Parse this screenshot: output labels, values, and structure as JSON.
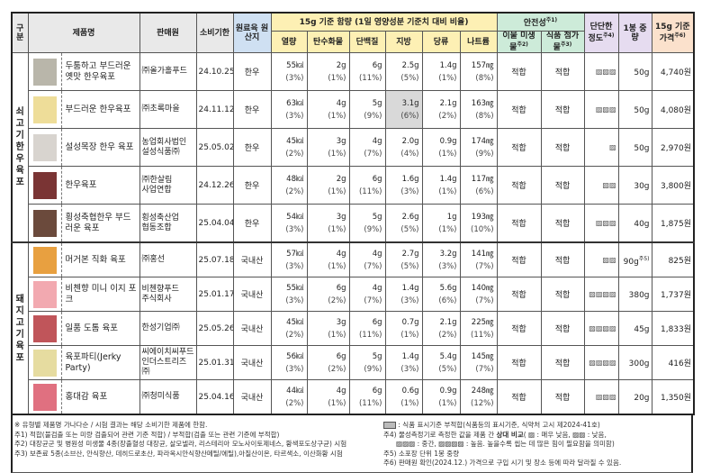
{
  "headers": {
    "category": "구분",
    "product": "제품명",
    "seller": "판매원",
    "expiry": "소비기한",
    "origin": "원료육 원산지",
    "nutrition_group": "15g 기준 함량 (1일 영양성분 기준치 대비 비율)",
    "calories": "열량",
    "carbs": "탄수화물",
    "protein": "단백질",
    "fat": "지방",
    "sugar": "당류",
    "sodium": "나트륨",
    "safety_group": "안전성",
    "safety_sup": "주1)",
    "foreign": "이물 미생물",
    "foreign_sup": "주2)",
    "additive": "식품 첨가물",
    "additive_sup": "주3)",
    "hardness": "단단한 정도",
    "hardness_sup": "주4)",
    "weight": "1봉 중량",
    "price": "15g 기준 가격",
    "price_sup": "주6)"
  },
  "categories": {
    "beef": "쇠 고 기  한 우  육 포",
    "pork": "돼 지 고 기  육 포"
  },
  "colors": {
    "header_gray": "#e9e9e9",
    "origin_blue": "#cfe0f2",
    "nutrition_yellow": "#fdf0b4",
    "safety_green": "#cdebd9",
    "hardness_purple": "#e6dcf0",
    "price_orange": "#fbe1cc",
    "nonconforming_gray": "#d9d9d9"
  },
  "rows": [
    {
      "group": "beef",
      "name": "두툼하고 부드러운 옛맛 한우육포",
      "seller": "㈜올가홀푸드",
      "expiry": "24.10.25.",
      "origin": "한우",
      "cal": "55㎉",
      "cal_p": "(3%)",
      "carb": "2g",
      "carb_p": "(1%)",
      "prot": "6g",
      "prot_p": "(11%)",
      "fat": "2.5g",
      "fat_p": "(5%)",
      "sugar": "1.4g",
      "sugar_p": "(1%)",
      "na": "157㎎",
      "na_p": "(8%)",
      "foreign": "적합",
      "additive": "적합",
      "hardness": "▨▨▨",
      "hardness_level": 3,
      "weight": "50g",
      "weight_sup": "",
      "price": "4,740원",
      "fat_nonconforming": false,
      "thumb": "#b9b6aa"
    },
    {
      "group": "beef",
      "name": "부드러운 한우육포",
      "seller": "㈜초록마을",
      "expiry": "24.11.12.",
      "origin": "한우",
      "cal": "63㎉",
      "cal_p": "(3%)",
      "carb": "4g",
      "carb_p": "(1%)",
      "prot": "5g",
      "prot_p": "(9%)",
      "fat": "3.1g",
      "fat_p": "(6%)",
      "sugar": "2.1g",
      "sugar_p": "(2%)",
      "na": "163㎎",
      "na_p": "(8%)",
      "foreign": "적합",
      "additive": "적합",
      "hardness": "▨▨▨",
      "hardness_level": 3,
      "weight": "50g",
      "weight_sup": "",
      "price": "4,080원",
      "fat_nonconforming": true,
      "thumb": "#eedd99"
    },
    {
      "group": "beef",
      "name": "설성목장 한우 육포",
      "seller": "농업회사법인 설성식품㈜",
      "expiry": "25.05.02.",
      "origin": "한우",
      "cal": "45㎉",
      "cal_p": "(2%)",
      "carb": "3g",
      "carb_p": "(1%)",
      "prot": "4g",
      "prot_p": "(7%)",
      "fat": "2.0g",
      "fat_p": "(4%)",
      "sugar": "0.9g",
      "sugar_p": "(1%)",
      "na": "174㎎",
      "na_p": "(9%)",
      "foreign": "적합",
      "additive": "적합",
      "hardness": "▨",
      "hardness_level": 1,
      "weight": "50g",
      "weight_sup": "",
      "price": "2,970원",
      "fat_nonconforming": false,
      "thumb": "#d8d4cf"
    },
    {
      "group": "beef",
      "name": "한우육포",
      "seller": "㈜한살림 사업연합",
      "expiry": "24.12.26.",
      "origin": "한우",
      "cal": "48㎉",
      "cal_p": "(2%)",
      "carb": "2g",
      "carb_p": "(1%)",
      "prot": "6g",
      "prot_p": "(11%)",
      "fat": "1.6g",
      "fat_p": "(3%)",
      "sugar": "1.4g",
      "sugar_p": "(1%)",
      "na": "117㎎",
      "na_p": "(6%)",
      "foreign": "적합",
      "additive": "적합",
      "hardness": "▨▨",
      "hardness_level": 2,
      "weight": "30g",
      "weight_sup": "",
      "price": "3,800원",
      "fat_nonconforming": false,
      "thumb": "#7a3434"
    },
    {
      "group": "beef",
      "name": "횡성축협한우 부드러운 육포",
      "seller": "횡성축산업 협동조합",
      "expiry": "25.04.04.",
      "origin": "한우",
      "cal": "54㎉",
      "cal_p": "(3%)",
      "carb": "3g",
      "carb_p": "(1%)",
      "prot": "5g",
      "prot_p": "(9%)",
      "fat": "2.6g",
      "fat_p": "(5%)",
      "sugar": "1g",
      "sugar_p": "(1%)",
      "na": "193㎎",
      "na_p": "(10%)",
      "foreign": "적합",
      "additive": "적합",
      "hardness": "▨▨▨",
      "hardness_level": 3,
      "weight": "40g",
      "weight_sup": "",
      "price": "1,875원",
      "fat_nonconforming": false,
      "thumb": "#6b4a3c"
    },
    {
      "group": "pork",
      "name": "머거본 직화 육포",
      "seller": "㈜홍선",
      "expiry": "25.07.18.",
      "origin": "국내산",
      "cal": "57㎉",
      "cal_p": "(3%)",
      "carb": "4g",
      "carb_p": "(1%)",
      "prot": "4g",
      "prot_p": "(7%)",
      "fat": "2.7g",
      "fat_p": "(5%)",
      "sugar": "3.2g",
      "sugar_p": "(3%)",
      "na": "141㎎",
      "na_p": "(7%)",
      "foreign": "적합",
      "additive": "적합",
      "hardness": "▨▨",
      "hardness_level": 2,
      "weight": "90g",
      "weight_sup": "주5)",
      "price": "825원",
      "fat_nonconforming": false,
      "thumb": "#e8a040"
    },
    {
      "group": "pork",
      "name": "비첸향 미니 이지 포크",
      "seller": "비첸향푸드 주식회사",
      "expiry": "25.01.17.",
      "origin": "국내산",
      "cal": "55㎉",
      "cal_p": "(3%)",
      "carb": "6g",
      "carb_p": "(2%)",
      "prot": "4g",
      "prot_p": "(7%)",
      "fat": "1.4g",
      "fat_p": "(3%)",
      "sugar": "5.6g",
      "sugar_p": "(6%)",
      "na": "140㎎",
      "na_p": "(7%)",
      "foreign": "적합",
      "additive": "적합",
      "hardness": "▨▨▨▨",
      "hardness_level": 4,
      "weight": "380g",
      "weight_sup": "",
      "price": "1,737원",
      "fat_nonconforming": false,
      "thumb": "#f2a9b0"
    },
    {
      "group": "pork",
      "name": "일품 도톰 육포",
      "seller": "한성기업㈜",
      "expiry": "25.05.26.",
      "origin": "국내산",
      "cal": "45㎉",
      "cal_p": "(2%)",
      "carb": "3g",
      "carb_p": "(1%)",
      "prot": "6g",
      "prot_p": "(11%)",
      "fat": "0.7g",
      "fat_p": "(1%)",
      "sugar": "2.1g",
      "sugar_p": "(2%)",
      "na": "225㎎",
      "na_p": "(11%)",
      "foreign": "적합",
      "additive": "적합",
      "hardness": "▨▨▨▨",
      "hardness_level": 4,
      "weight": "45g",
      "weight_sup": "",
      "price": "1,833원",
      "fat_nonconforming": false,
      "thumb": "#c0555a"
    },
    {
      "group": "pork",
      "name": "육포파티(Jerky Party)",
      "seller": "씨에이치씨푸드 인더스트리즈㈜",
      "expiry": "25.01.31.",
      "origin": "국내산",
      "cal": "56㎉",
      "cal_p": "(3%)",
      "carb": "6g",
      "carb_p": "(2%)",
      "prot": "5g",
      "prot_p": "(9%)",
      "fat": "1.4g",
      "fat_p": "(3%)",
      "sugar": "5.4g",
      "sugar_p": "(5%)",
      "na": "145㎎",
      "na_p": "(7%)",
      "foreign": "적합",
      "additive": "적합",
      "hardness": "▨▨▨▨",
      "hardness_level": 4,
      "weight": "300g",
      "weight_sup": "",
      "price": "416원",
      "fat_nonconforming": false,
      "thumb": "#e6dca0"
    },
    {
      "group": "pork",
      "name": "홍대감 육포",
      "seller": "㈜청미식품",
      "expiry": "25.04.16.",
      "origin": "국내산",
      "cal": "44㎉",
      "cal_p": "(2%)",
      "carb": "4g",
      "carb_p": "(1%)",
      "prot": "6g",
      "prot_p": "(11%)",
      "fat": "0.6g",
      "fat_p": "(1%)",
      "sugar": "0.9g",
      "sugar_p": "(1%)",
      "na": "248㎎",
      "na_p": "(12%)",
      "foreign": "적합",
      "additive": "적합",
      "hardness": "▨▨▨",
      "hardness_level": 3,
      "weight": "20g",
      "weight_sup": "",
      "price": "1,350원",
      "fat_nonconforming": false,
      "thumb": "#e07080"
    }
  ],
  "notes": {
    "n0": "※ 유형별 제품명 가나다순 / 시험 결과는 해당 소비기한 제품에 한함.",
    "n1": "주1) 적합(불검출 또는 미량 검출되어 관련 기준 적합) / 부적합(검출 또는 관련 기준에 부적합)",
    "n2": "주2) 대장균군 및 병원성 미생물 4종(장출혈성 대장균, 살모넬라, 리스테리아 모노사이토제네스, 황색포도상구균) 시험",
    "n3": "주3) 보존료 5종(소브산, 안식향산, 데히드로초산, 파라옥시안식향산메틸/에틸),아질산이온, 타르색소, 이산화황 시험",
    "legend_gray": ": 식품 표시기준 부적합(식품등의 표시기준, 식약처 고시 제2024-41호)",
    "n4a": "주4) 물성측정기로 측정한 값을 제품 간 ",
    "n4b": "상대 비교",
    "n4c": "( ▨ : 매우 낮음, ▨▨ : 낮음,",
    "n4d": "▨▨▨ : 중간, ▨▨▨▨ : 높음. 높을수록 씹는 데 많은 힘이 필요함을 의미함)",
    "n5": "주5) 소포장 단위 1봉 중량",
    "n6": "주6) 판매원 확인(2024.12.) 가격으로 구입 시기 및 장소 등에 따라 달라질 수 있음."
  }
}
